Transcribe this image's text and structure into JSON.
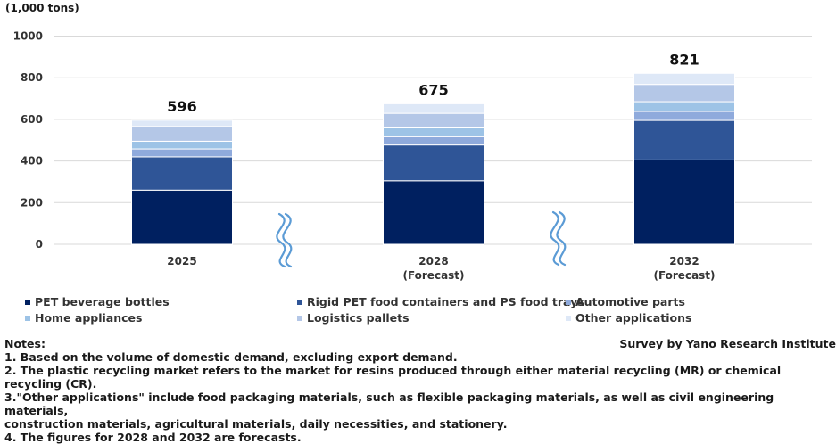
{
  "colors": {
    "pet_beverage_bottles": "#002060",
    "rigid_pet": "#2f5597",
    "automotive": "#8faadc",
    "home_appliances": "#9dc3e6",
    "logistics": "#b4c7e7",
    "other": "#dee8f7",
    "grid": "#d9d9d9",
    "break_mark": "#5b9bd5"
  },
  "chart_data": {
    "type": "bar",
    "stacked": true,
    "unit_label": "(1,000 tons)",
    "categories": [
      {
        "year": "2025",
        "sub": ""
      },
      {
        "year": "2028",
        "sub": "(Forecast)"
      },
      {
        "year": "2032",
        "sub": "(Forecast)"
      }
    ],
    "totals": [
      "596",
      "675",
      "821"
    ],
    "ylim": [
      0,
      1000
    ],
    "yticks": [
      0,
      200,
      400,
      600,
      800,
      1000
    ],
    "grid": true,
    "legend_position": "bottom",
    "series": [
      {
        "name": "PET beverage bottles",
        "values": [
          260,
          305,
          405
        ]
      },
      {
        "name": "Rigid PET food containers and PS food trays",
        "values": [
          160,
          172,
          190
        ]
      },
      {
        "name": "Automotive parts",
        "values": [
          38,
          40,
          43
        ]
      },
      {
        "name": "Home appliances",
        "values": [
          37,
          42,
          47
        ]
      },
      {
        "name": "Logistics pallets",
        "values": [
          71,
          70,
          83
        ]
      },
      {
        "name": "Other applications",
        "values": [
          30,
          46,
          53
        ]
      }
    ]
  },
  "notes": {
    "heading": "Notes:",
    "lines": [
      "1. Based on the volume of domestic demand, excluding export demand.",
      "2. The plastic recycling market refers to the market for resins produced through either material recycling (MR) or chemical recycling (CR).",
      "3.\"Other applications\" include food packaging materials, such as flexible packaging materials, as well as civil engineering materials,",
      "construction materials, agricultural materials, daily necessities, and stationery.",
      "4. The figures for 2028 and 2032 are forecasts."
    ]
  },
  "source": "Survey by Yano Research Institute"
}
